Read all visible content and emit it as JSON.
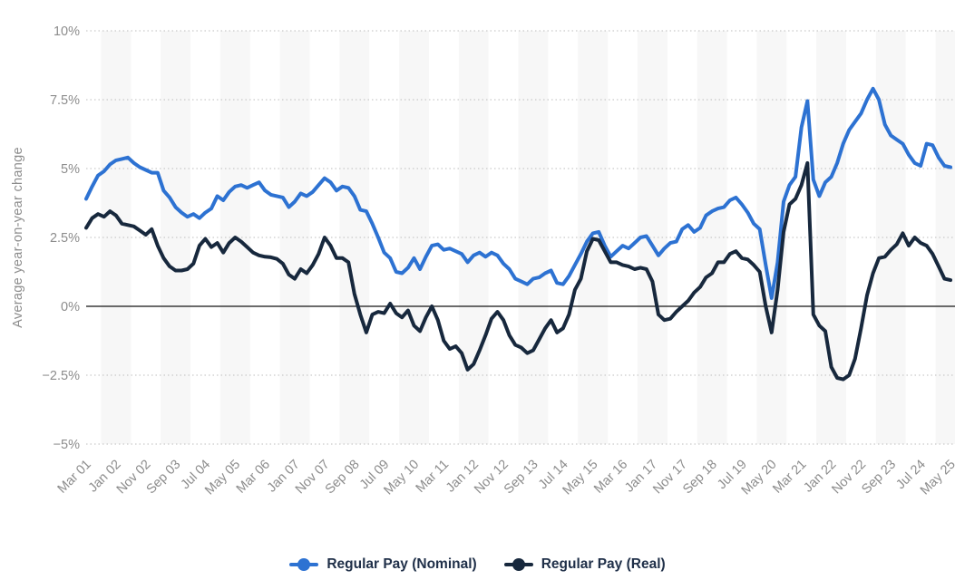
{
  "chart_data": {
    "type": "line",
    "title": "",
    "ylabel": "Average year-on-year change",
    "xlabel": "",
    "ylim": [
      -5,
      10
    ],
    "grid": "horizontal dotted gridlines, alternating vertical background stripes",
    "legend_position": "bottom-center",
    "y_ticks": {
      "values": [
        10,
        7.5,
        5,
        2.5,
        0,
        -2.5,
        -5
      ],
      "labels": [
        "10%",
        "7.5%",
        "5%",
        "2.5%",
        "0%",
        "−2.5%",
        "−5%"
      ]
    },
    "x_tick_labels": [
      "Mar 01",
      "Jan 02",
      "Nov 02",
      "Sep 03",
      "Jul 04",
      "May 05",
      "Mar 06",
      "Jan 07",
      "Nov 07",
      "Sep 08",
      "Jul 09",
      "May 10",
      "Mar 11",
      "Jan 12",
      "Nov 12",
      "Sep 13",
      "Jul 14",
      "May 15",
      "Mar 16",
      "Jan 17",
      "Nov 17",
      "Sep 18",
      "Jul 19",
      "May 20",
      "Mar 21",
      "Jan 22",
      "Nov 22",
      "Sep 23",
      "Jul 24",
      "May 25"
    ],
    "x_note": "monthly series Mar 2001 - May 2025, values sampled every 2 months, percent year-on-year change",
    "series": [
      {
        "name": "Regular Pay (Nominal)",
        "color": "#2d72d2",
        "values": [
          3.9,
          4.35,
          4.75,
          4.9,
          5.15,
          5.3,
          5.35,
          5.4,
          5.2,
          5.05,
          4.95,
          4.85,
          4.85,
          4.2,
          3.95,
          3.6,
          3.4,
          3.25,
          3.35,
          3.2,
          3.4,
          3.55,
          4.0,
          3.85,
          4.15,
          4.35,
          4.4,
          4.3,
          4.4,
          4.5,
          4.2,
          4.05,
          4.0,
          3.95,
          3.6,
          3.8,
          4.1,
          4.0,
          4.15,
          4.4,
          4.65,
          4.5,
          4.2,
          4.35,
          4.3,
          4.0,
          3.5,
          3.45,
          3.0,
          2.5,
          1.95,
          1.75,
          1.25,
          1.2,
          1.4,
          1.75,
          1.35,
          1.8,
          2.2,
          2.25,
          2.05,
          2.1,
          2.0,
          1.9,
          1.6,
          1.85,
          1.95,
          1.8,
          1.95,
          1.85,
          1.55,
          1.35,
          1.0,
          0.9,
          0.8,
          1.0,
          1.05,
          1.2,
          1.3,
          0.85,
          0.8,
          1.1,
          1.5,
          1.9,
          2.35,
          2.65,
          2.7,
          2.2,
          1.8,
          2.0,
          2.2,
          2.1,
          2.3,
          2.5,
          2.55,
          2.2,
          1.85,
          2.1,
          2.3,
          2.35,
          2.8,
          2.95,
          2.7,
          2.85,
          3.3,
          3.45,
          3.55,
          3.6,
          3.85,
          3.95,
          3.7,
          3.4,
          3.0,
          2.8,
          1.5,
          0.3,
          1.6,
          3.8,
          4.4,
          4.7,
          6.5,
          7.45,
          4.6,
          4.0,
          4.5,
          4.7,
          5.2,
          5.9,
          6.4,
          6.7,
          7.0,
          7.5,
          7.9,
          7.5,
          6.6,
          6.2,
          6.05,
          5.9,
          5.5,
          5.2,
          5.1,
          5.9,
          5.85,
          5.4,
          5.1,
          5.05
        ]
      },
      {
        "name": "Regular Pay (Real)",
        "color": "#17283d",
        "values": [
          2.85,
          3.2,
          3.35,
          3.25,
          3.45,
          3.3,
          3.0,
          2.95,
          2.9,
          2.75,
          2.6,
          2.8,
          2.2,
          1.75,
          1.45,
          1.3,
          1.3,
          1.35,
          1.55,
          2.2,
          2.45,
          2.15,
          2.3,
          1.95,
          2.3,
          2.5,
          2.35,
          2.15,
          1.95,
          1.85,
          1.8,
          1.78,
          1.72,
          1.55,
          1.15,
          1.0,
          1.35,
          1.2,
          1.5,
          1.9,
          2.5,
          2.2,
          1.75,
          1.75,
          1.6,
          0.45,
          -0.3,
          -0.95,
          -0.3,
          -0.2,
          -0.25,
          0.1,
          -0.25,
          -0.4,
          -0.15,
          -0.7,
          -0.9,
          -0.4,
          0.0,
          -0.5,
          -1.25,
          -1.55,
          -1.45,
          -1.7,
          -2.3,
          -2.1,
          -1.6,
          -1.05,
          -0.45,
          -0.2,
          -0.5,
          -1.05,
          -1.4,
          -1.5,
          -1.7,
          -1.6,
          -1.2,
          -0.8,
          -0.5,
          -0.95,
          -0.8,
          -0.3,
          0.6,
          1.0,
          2.0,
          2.45,
          2.4,
          2.0,
          1.6,
          1.6,
          1.5,
          1.45,
          1.35,
          1.4,
          1.35,
          0.9,
          -0.3,
          -0.5,
          -0.45,
          -0.2,
          0.0,
          0.2,
          0.5,
          0.7,
          1.05,
          1.2,
          1.6,
          1.6,
          1.9,
          2.0,
          1.75,
          1.7,
          1.5,
          1.25,
          0.0,
          -0.95,
          0.6,
          2.7,
          3.7,
          3.9,
          4.4,
          5.2,
          -0.3,
          -0.7,
          -0.9,
          -2.2,
          -2.6,
          -2.65,
          -2.5,
          -1.9,
          -0.8,
          0.4,
          1.2,
          1.75,
          1.8,
          2.05,
          2.25,
          2.65,
          2.2,
          2.5,
          2.3,
          2.2,
          1.9,
          1.45,
          1.0,
          0.95
        ]
      }
    ],
    "style": {
      "stripe_color": "#f7f7f7",
      "gridline_color": "#c9c9c9",
      "zero_line_color": "#3a3a3a",
      "axis_text_color": "#8c8c8c",
      "legend_text_color": "#203049",
      "line_width": 4
    }
  }
}
